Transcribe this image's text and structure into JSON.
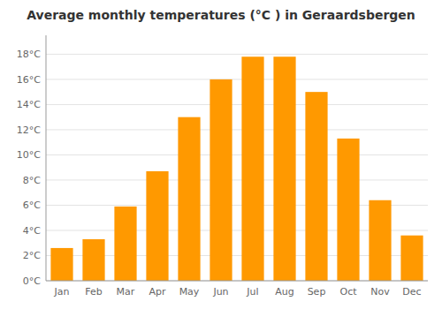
{
  "chart_data": {
    "type": "bar",
    "title": "Average monthly temperatures (°C ) in Geraardsbergen",
    "categories": [
      "Jan",
      "Feb",
      "Mar",
      "Apr",
      "May",
      "Jun",
      "Jul",
      "Aug",
      "Sep",
      "Oct",
      "Nov",
      "Dec"
    ],
    "values": [
      2.6,
      3.3,
      5.9,
      8.7,
      13.0,
      16.0,
      17.8,
      17.8,
      15.0,
      11.3,
      6.4,
      3.6
    ],
    "color": "#ff9900",
    "ylim": [
      0,
      19.5
    ],
    "yticks": [
      {
        "value": 0,
        "label": "0°C"
      },
      {
        "value": 2,
        "label": "2°C"
      },
      {
        "value": 4,
        "label": "4°C"
      },
      {
        "value": 6,
        "label": "6°C"
      },
      {
        "value": 8,
        "label": "8°C"
      },
      {
        "value": 10,
        "label": "10°C"
      },
      {
        "value": 12,
        "label": "12°C"
      },
      {
        "value": 14,
        "label": "14°C"
      },
      {
        "value": 16,
        "label": "16°C"
      },
      {
        "value": 18,
        "label": "18°C"
      }
    ],
    "grid": true
  }
}
